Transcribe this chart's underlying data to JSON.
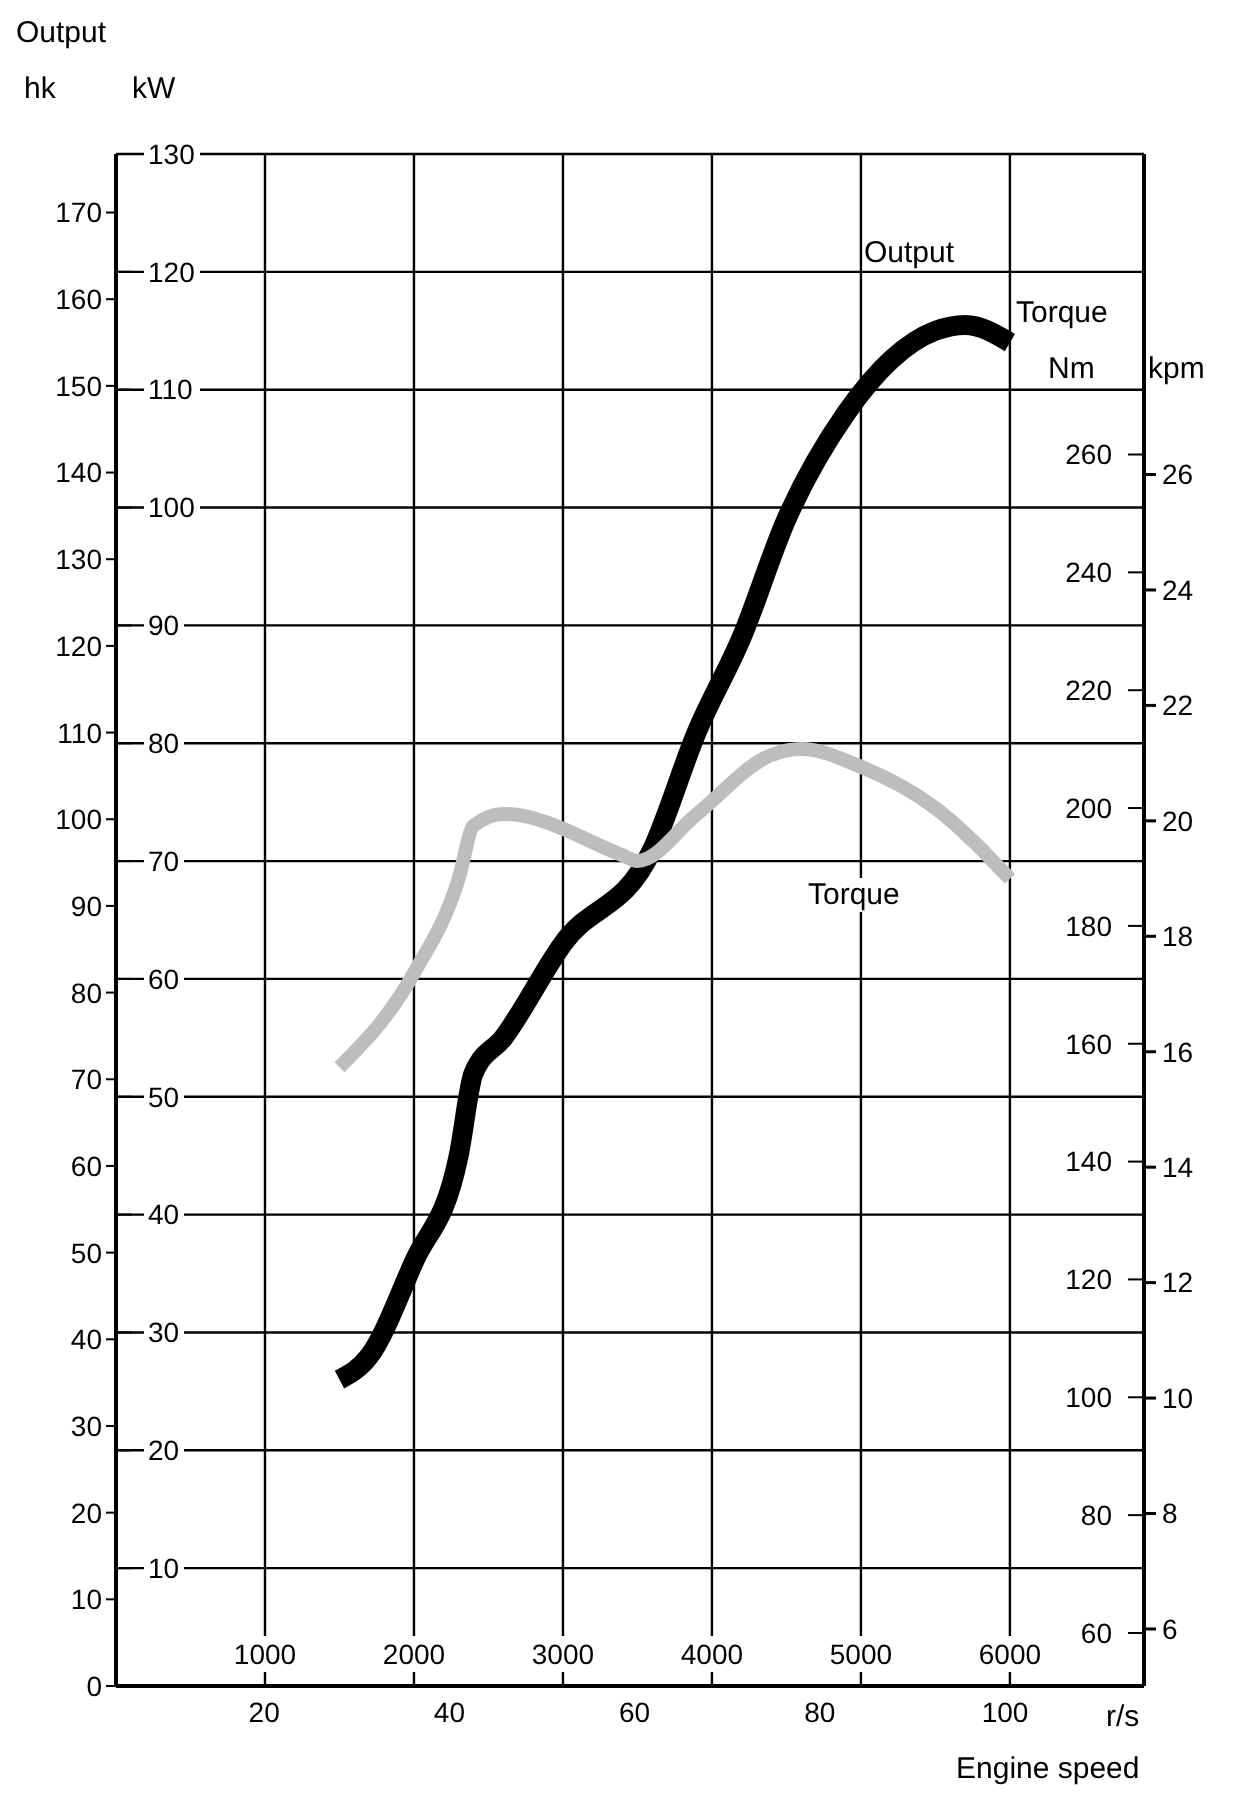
{
  "chart_data": {
    "type": "line",
    "xlabel": "Engine speed",
    "x2label": "r/s",
    "ylabel": "kW",
    "y2label": "Nm",
    "y3label": "hk",
    "annotations": [
      "Output",
      "Torque",
      "kpm",
      "6",
      "8",
      "10",
      "12",
      "14",
      "16",
      "18",
      "20",
      "22",
      "24",
      "26"
    ],
    "xlim": [
      0,
      6900
    ],
    "xticks": [
      1000,
      2000,
      3000,
      4000,
      5000,
      6000
    ],
    "x2lim": [
      4,
      115
    ],
    "x2ticks": [
      20,
      40,
      60,
      80,
      100
    ],
    "ylim": [
      0,
      130
    ],
    "yticks": [
      10,
      20,
      30,
      40,
      50,
      60,
      70,
      80,
      90,
      100,
      110,
      120,
      130
    ],
    "y2lim": [
      51,
      311
    ],
    "y2ticks": [
      60,
      80,
      100,
      120,
      140,
      160,
      180,
      200,
      220,
      240,
      260
    ],
    "y3lim": [
      0,
      176.75
    ],
    "y3ticks": [
      0,
      10,
      20,
      30,
      40,
      50,
      60,
      70,
      80,
      90,
      100,
      110,
      120,
      130,
      140,
      150,
      160,
      170
    ],
    "grid": true,
    "series": [
      {
        "name": "Output",
        "color": "#000000",
        "axis": "y",
        "x": [
          1500,
          1700,
          2000,
          2300,
          2400,
          2600,
          3000,
          3600,
          3900,
          4200,
          4500,
          4900,
          5500,
          5700,
          6000
        ],
        "values": [
          26,
          28,
          36,
          45,
          52,
          55,
          63,
          71,
          81,
          89,
          99,
          108,
          115,
          115.5,
          114
        ]
      },
      {
        "name": "Torque",
        "color": "#bdbdbd",
        "axis": "y2",
        "x": [
          1500,
          2000,
          2300,
          2400,
          2600,
          3400,
          3500,
          3900,
          4400,
          4600,
          5000,
          5500,
          6000
        ],
        "values": [
          156,
          172,
          188,
          197,
          199,
          192,
          191,
          199,
          209,
          210,
          207,
          200,
          188
        ]
      }
    ]
  }
}
